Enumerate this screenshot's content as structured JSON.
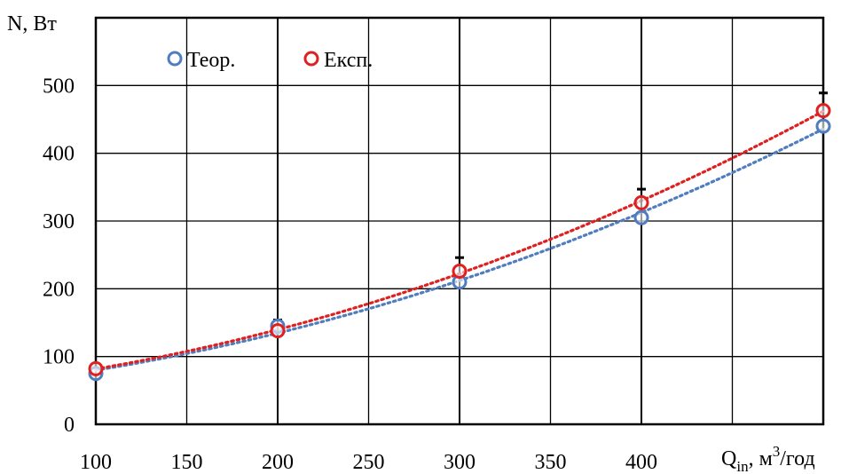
{
  "chart_data": {
    "type": "scatter",
    "ylabel": "N, Вт",
    "xlabel": {
      "base": "Q",
      "sub": "in",
      "rest1": ", м",
      "sup": "3",
      "rest2": "/год"
    },
    "x_ticks": [
      "100",
      "150",
      "200",
      "250",
      "300",
      "350",
      "400"
    ],
    "y_ticks": [
      "0",
      "100",
      "200",
      "300",
      "400",
      "500"
    ],
    "xlim": [
      100,
      500
    ],
    "ylim": [
      0,
      600
    ],
    "grid": true,
    "legend_position": "top-left",
    "series": [
      {
        "name": "Теор.",
        "color": "#4F7DBD",
        "trendline": "dotted",
        "points": [
          {
            "x": 100,
            "y": 75
          },
          {
            "x": 200,
            "y": 145
          },
          {
            "x": 300,
            "y": 210
          },
          {
            "x": 400,
            "y": 305
          },
          {
            "x": 500,
            "y": 440
          }
        ]
      },
      {
        "name": "Експ.",
        "color": "#E02020",
        "trendline": "dotted",
        "points": [
          {
            "x": 100,
            "y": 82,
            "err": 0
          },
          {
            "x": 200,
            "y": 138,
            "err": 16
          },
          {
            "x": 300,
            "y": 226,
            "err": 20
          },
          {
            "x": 400,
            "y": 327,
            "err": 20
          },
          {
            "x": 500,
            "y": 463,
            "err": 26
          }
        ]
      }
    ]
  }
}
